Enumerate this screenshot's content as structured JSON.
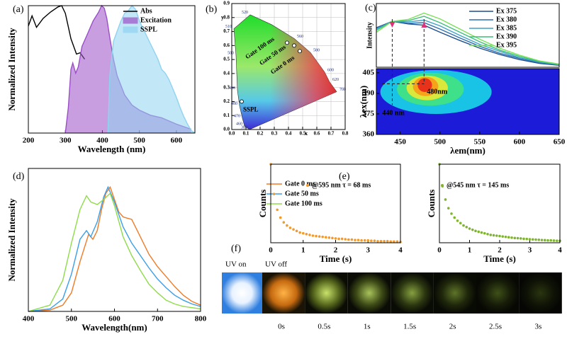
{
  "panel_labels": [
    "(a)",
    "(b)",
    "(c)",
    "(d)",
    "(e)",
    "(f)"
  ],
  "chart_data": [
    {
      "type": "line",
      "xlabel": "Wavelength (nm)",
      "ylabel": "Normalized Intensity",
      "xlim": [
        200,
        650
      ],
      "xticks": [
        200,
        300,
        400,
        500,
        600
      ],
      "ylim": [
        0,
        1
      ],
      "series": [
        {
          "name": "Abs",
          "color": "#000000",
          "fill": false,
          "x": [
            200,
            210,
            222,
            240,
            260,
            280,
            290,
            300,
            315,
            330,
            340,
            352
          ],
          "values": [
            0.84,
            0.92,
            0.83,
            0.9,
            0.95,
            0.99,
            1.0,
            0.94,
            0.74,
            0.62,
            0.63,
            0.58
          ]
        },
        {
          "name": "Excitation",
          "color": "#9b4fc7",
          "fill": true,
          "x": [
            300,
            308,
            315,
            320,
            328,
            335,
            345,
            360,
            375,
            390,
            398,
            405,
            412,
            420,
            430,
            440,
            460,
            480,
            500,
            530,
            560,
            600,
            640
          ],
          "values": [
            0,
            0.2,
            0.5,
            0.55,
            0.47,
            0.52,
            0.68,
            0.78,
            0.88,
            0.95,
            1.0,
            0.98,
            0.9,
            0.75,
            0.58,
            0.45,
            0.3,
            0.22,
            0.18,
            0.14,
            0.12,
            0.07,
            0.03
          ]
        },
        {
          "name": "SSPL",
          "color": "#8fd3f0",
          "fill": true,
          "x": [
            415,
            420,
            430,
            440,
            450,
            460,
            470,
            480,
            490,
            500,
            510,
            520,
            530,
            540,
            550,
            560,
            570,
            580,
            590,
            600,
            610,
            620,
            630,
            640,
            650
          ],
          "values": [
            0,
            0.45,
            0.72,
            0.8,
            0.88,
            0.94,
            0.96,
            1.0,
            0.97,
            0.88,
            0.82,
            0.76,
            0.7,
            0.64,
            0.58,
            0.5,
            0.47,
            0.42,
            0.35,
            0.28,
            0.2,
            0.13,
            0.07,
            0.02,
            0
          ]
        }
      ]
    },
    {
      "type": "chromaticity",
      "xlabel": "x",
      "ylabel": "y",
      "xlim": [
        0,
        0.8
      ],
      "ylim": [
        0,
        0.9
      ],
      "grid": true,
      "xticks": [
        {
          "value": 0,
          "label": "0.0"
        },
        0.1,
        0.2,
        0.3,
        0.4,
        0.5,
        0.6,
        0.7,
        0.8
      ],
      "yticks": [
        {
          "value": 0,
          "label": "0.0"
        },
        0.1,
        0.2,
        0.3,
        0.4,
        0.5,
        0.6,
        0.7,
        0.8,
        0.9
      ],
      "locus": [
        {
          "label": "380",
          "x": 0.125,
          "y": 0.0
        },
        {
          "label": "460",
          "x": 0.09,
          "y": 0.025
        },
        {
          "label": "470",
          "x": 0.075,
          "y": 0.08
        },
        {
          "label": "480",
          "x": 0.055,
          "y": 0.17
        },
        {
          "label": "490",
          "x": 0.04,
          "y": 0.28
        },
        {
          "label": "500",
          "x": 0.03,
          "y": 0.53
        },
        {
          "label": "510",
          "x": 0.015,
          "y": 0.72
        },
        {
          "label": "520",
          "x": 0.13,
          "y": 0.82
        },
        {
          "label": null,
          "x": 0.28,
          "y": 0.75
        },
        {
          "label": "560",
          "x": 0.44,
          "y": 0.65
        },
        {
          "label": "580",
          "x": 0.555,
          "y": 0.55
        },
        {
          "label": "600",
          "x": 0.655,
          "y": 0.41
        },
        {
          "label": "620",
          "x": 0.69,
          "y": 0.34
        },
        {
          "label": "700",
          "x": 0.74,
          "y": 0.27
        }
      ],
      "series": [
        {
          "name": "SSPL",
          "color": "#ffffff",
          "x": [
            0.07
          ],
          "values": [
            0.2
          ]
        },
        {
          "name": "Gate 100 ms",
          "color": "#ffffff",
          "x": [
            0.39
          ],
          "values": [
            0.62
          ]
        },
        {
          "name": "Gate 50 ms",
          "color": "#ffffff",
          "x": [
            0.44
          ],
          "values": [
            0.6
          ]
        },
        {
          "name": "Gate 0 ms",
          "color": "#ffffff",
          "x": [
            0.48
          ],
          "values": [
            0.56
          ]
        }
      ]
    },
    {
      "type": "line",
      "ylabel": "Intensity",
      "xlim": [
        420,
        650
      ],
      "ylim": [
        0,
        1
      ],
      "x": [
        420,
        440,
        460,
        480,
        500,
        525,
        550,
        575,
        600,
        625,
        650
      ],
      "series": [
        {
          "name": "Ex 375",
          "color": "#1f4e8c",
          "values": [
            0.62,
            0.72,
            0.68,
            0.66,
            0.55,
            0.42,
            0.3,
            0.2,
            0.12,
            0.06,
            0.03
          ]
        },
        {
          "name": "Ex 380",
          "color": "#2f6fb0",
          "values": [
            0.61,
            0.72,
            0.69,
            0.7,
            0.6,
            0.46,
            0.33,
            0.22,
            0.14,
            0.07,
            0.035
          ]
        },
        {
          "name": "Ex 385",
          "color": "#3fa0c8",
          "values": [
            0.6,
            0.72,
            0.71,
            0.74,
            0.65,
            0.5,
            0.36,
            0.25,
            0.15,
            0.08,
            0.04
          ]
        },
        {
          "name": "Ex 390",
          "color": "#3cbf7a",
          "values": [
            0.58,
            0.72,
            0.73,
            0.8,
            0.7,
            0.55,
            0.4,
            0.27,
            0.17,
            0.09,
            0.045
          ]
        },
        {
          "name": "Ex 395",
          "color": "#7be05a",
          "values": [
            0.55,
            0.72,
            0.75,
            0.85,
            0.76,
            0.6,
            0.44,
            0.3,
            0.19,
            0.1,
            0.05
          ]
        }
      ]
    },
    {
      "type": "contour",
      "xlabel": "λem(nm)",
      "ylabel": "λex(nm)",
      "xlim": [
        420,
        650
      ],
      "ylim": [
        360,
        408
      ],
      "xticks": [
        450,
        500,
        550,
        600,
        650
      ],
      "yticks": [
        360,
        375,
        390,
        405
      ],
      "background": "#1c1cd8",
      "contours": [
        {
          "x": 495,
          "y": 391,
          "rx": 70,
          "ry": 16,
          "color": "#19c3e6"
        },
        {
          "x": 488,
          "y": 393,
          "rx": 42,
          "ry": 12,
          "color": "#3fe08a"
        },
        {
          "x": 484,
          "y": 394,
          "rx": 26,
          "ry": 9,
          "color": "#d9e83a"
        },
        {
          "x": 482,
          "y": 395,
          "rx": 16,
          "ry": 7,
          "color": "#f7a21b"
        },
        {
          "x": 481,
          "y": 396,
          "rx": 9,
          "ry": 5,
          "color": "#e8321a"
        }
      ],
      "annotations": [
        {
          "text": "480nm",
          "x": 480,
          "y": 397
        },
        {
          "text": "440 nm",
          "x": 440,
          "y": 397
        }
      ]
    },
    {
      "type": "line",
      "xlabel": "Wavelength(nm)",
      "ylabel": "Normalized Intensity",
      "xlim": [
        400,
        800
      ],
      "xticks": [
        400,
        500,
        600,
        700,
        800
      ],
      "ylim": [
        0,
        1.15
      ],
      "series": [
        {
          "name": "Gate 0 ms",
          "color": "#f07a26",
          "x": [
            400,
            450,
            480,
            500,
            520,
            540,
            550,
            560,
            570,
            580,
            590,
            600,
            610,
            620,
            630,
            640,
            660,
            680,
            700,
            720,
            740,
            760,
            780,
            800
          ],
          "values": [
            0,
            0.01,
            0.05,
            0.15,
            0.4,
            0.62,
            0.58,
            0.65,
            0.82,
            0.95,
            1.0,
            0.9,
            0.8,
            0.76,
            0.75,
            0.74,
            0.6,
            0.46,
            0.36,
            0.28,
            0.2,
            0.13,
            0.08,
            0.05
          ]
        },
        {
          "name": "Gate 50 ms",
          "color": "#3a9ee8",
          "x": [
            400,
            450,
            480,
            500,
            520,
            535,
            545,
            560,
            575,
            585,
            600,
            620,
            640,
            660,
            680,
            700,
            720,
            740,
            760,
            780,
            800
          ],
          "values": [
            0,
            0.02,
            0.1,
            0.3,
            0.58,
            0.65,
            0.6,
            0.72,
            0.92,
            1.0,
            0.88,
            0.68,
            0.55,
            0.45,
            0.35,
            0.26,
            0.19,
            0.13,
            0.09,
            0.06,
            0.04
          ]
        },
        {
          "name": "Gate 100 ms",
          "color": "#8fdc4a",
          "x": [
            400,
            450,
            480,
            500,
            520,
            535,
            545,
            560,
            575,
            590,
            600,
            620,
            640,
            660,
            680,
            700,
            720,
            740,
            760,
            780,
            800
          ],
          "values": [
            0,
            0.05,
            0.25,
            0.55,
            0.82,
            0.93,
            0.88,
            0.86,
            0.9,
            0.95,
            0.85,
            0.6,
            0.45,
            0.33,
            0.22,
            0.15,
            0.09,
            0.06,
            0.04,
            0.03,
            0.02
          ]
        }
      ]
    },
    {
      "type": "scatter",
      "xlabel": "Time (s)",
      "ylabel": "Counts",
      "xlim": [
        0,
        4
      ],
      "xticks": [
        0,
        1,
        2,
        3,
        4
      ],
      "ylim": [
        0,
        1
      ],
      "x": [
        0,
        0.1,
        0.2,
        0.3,
        0.4,
        0.5,
        0.6,
        0.7,
        0.8,
        0.9,
        1,
        1.1,
        1.2,
        1.3,
        1.4,
        1.5,
        1.6,
        1.7,
        1.8,
        1.9,
        2,
        2.1,
        2.2,
        2.3,
        2.4,
        2.5,
        2.6,
        2.7,
        2.8,
        2.9,
        3,
        3.1,
        3.2,
        3.3,
        3.4,
        3.5,
        3.6,
        3.7,
        3.8,
        3.9,
        4
      ],
      "series": [
        {
          "name": "@595 nm τ = 68 ms",
          "color": "#f39a2a",
          "values": [
            1.0,
            0.62,
            0.42,
            0.32,
            0.26,
            0.22,
            0.19,
            0.17,
            0.15,
            0.13,
            0.12,
            0.11,
            0.1,
            0.09,
            0.085,
            0.08,
            0.075,
            0.07,
            0.065,
            0.06,
            0.055,
            0.05,
            0.05,
            0.045,
            0.04,
            0.04,
            0.035,
            0.035,
            0.03,
            0.03,
            0.03,
            0.025,
            0.025,
            0.02,
            0.02,
            0.02,
            0.02,
            0.015,
            0.015,
            0.015,
            0.01
          ]
        }
      ]
    },
    {
      "type": "scatter",
      "xlabel": "Time (s)",
      "ylabel": "Counts",
      "xlim": [
        0,
        4
      ],
      "xticks": [
        0,
        1,
        2,
        3,
        4
      ],
      "ylim": [
        0,
        1
      ],
      "x": [
        0,
        0.1,
        0.2,
        0.3,
        0.4,
        0.5,
        0.6,
        0.7,
        0.8,
        0.9,
        1,
        1.1,
        1.2,
        1.3,
        1.4,
        1.5,
        1.6,
        1.7,
        1.8,
        1.9,
        2,
        2.1,
        2.2,
        2.3,
        2.4,
        2.5,
        2.6,
        2.7,
        2.8,
        2.9,
        3,
        3.1,
        3.2,
        3.3,
        3.4,
        3.5,
        3.6,
        3.7,
        3.8,
        3.9,
        4
      ],
      "series": [
        {
          "name": "@545 nm τ = 145 ms",
          "color": "#7fb52e",
          "values": [
            1.0,
            0.72,
            0.55,
            0.44,
            0.37,
            0.32,
            0.28,
            0.25,
            0.22,
            0.2,
            0.18,
            0.165,
            0.15,
            0.14,
            0.13,
            0.12,
            0.11,
            0.1,
            0.095,
            0.09,
            0.085,
            0.08,
            0.075,
            0.07,
            0.065,
            0.06,
            0.058,
            0.055,
            0.05,
            0.048,
            0.045,
            0.042,
            0.04,
            0.038,
            0.035,
            0.033,
            0.03,
            0.03,
            0.028,
            0.026,
            0.025
          ]
        }
      ]
    }
  ],
  "photo_strip": {
    "labels": [
      "UV on",
      "UV off"
    ],
    "times": [
      "0s",
      "0.5s",
      "1s",
      "1.5s",
      "2s",
      "2.5s",
      "3s"
    ]
  }
}
